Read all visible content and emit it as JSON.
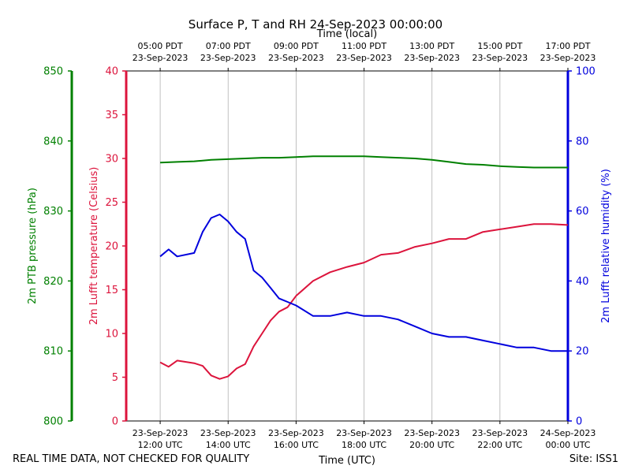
{
  "title": "Surface P, T and RH 24-Sep-2023 00:00:00",
  "footer": {
    "left": "REAL TIME DATA, NOT CHECKED FOR QUALITY",
    "right": "Site: ISS1"
  },
  "colors": {
    "pressure": "#008000",
    "temperature": "#dc143c",
    "humidity": "#0000dd",
    "grid": "#b0b0b0"
  },
  "chart_data": {
    "type": "line",
    "title": "Surface P, T and RH 24-Sep-2023 00:00:00",
    "xlabel": "Time (UTC)",
    "xlabel_top": "Time (local)",
    "xlim": [
      "2023-09-23 11:00",
      "2023-09-24 00:00"
    ],
    "x_ticks_bottom": [
      {
        "value": "2023-09-23 12:00",
        "line1": "23-Sep-2023",
        "line2": "12:00 UTC"
      },
      {
        "value": "2023-09-23 14:00",
        "line1": "23-Sep-2023",
        "line2": "14:00 UTC"
      },
      {
        "value": "2023-09-23 16:00",
        "line1": "23-Sep-2023",
        "line2": "16:00 UTC"
      },
      {
        "value": "2023-09-23 18:00",
        "line1": "23-Sep-2023",
        "line2": "18:00 UTC"
      },
      {
        "value": "2023-09-23 20:00",
        "line1": "23-Sep-2023",
        "line2": "20:00 UTC"
      },
      {
        "value": "2023-09-23 22:00",
        "line1": "23-Sep-2023",
        "line2": "22:00 UTC"
      },
      {
        "value": "2023-09-24 00:00",
        "line1": "24-Sep-2023",
        "line2": "00:00 UTC"
      }
    ],
    "x_ticks_top": [
      {
        "value": "2023-09-23 12:00",
        "line1": "05:00 PDT",
        "line2": "23-Sep-2023"
      },
      {
        "value": "2023-09-23 14:00",
        "line1": "07:00 PDT",
        "line2": "23-Sep-2023"
      },
      {
        "value": "2023-09-23 16:00",
        "line1": "09:00 PDT",
        "line2": "23-Sep-2023"
      },
      {
        "value": "2023-09-23 18:00",
        "line1": "11:00 PDT",
        "line2": "23-Sep-2023"
      },
      {
        "value": "2023-09-23 20:00",
        "line1": "13:00 PDT",
        "line2": "23-Sep-2023"
      },
      {
        "value": "2023-09-23 22:00",
        "line1": "15:00 PDT",
        "line2": "23-Sep-2023"
      },
      {
        "value": "2023-09-24 00:00",
        "line1": "17:00 PDT",
        "line2": "23-Sep-2023"
      }
    ],
    "axes": {
      "pressure": {
        "label": "2m PTB pressure (hPa)",
        "ylim": [
          800,
          850
        ],
        "ticks": [
          "800",
          "810",
          "820",
          "830",
          "840",
          "850"
        ]
      },
      "temperature": {
        "label": "2m Lufft temperature (Celsius)",
        "ylim": [
          0,
          40
        ],
        "ticks": [
          "0",
          "5",
          "10",
          "15",
          "20",
          "25",
          "30",
          "35",
          "40"
        ]
      },
      "humidity": {
        "label": "2m Lufft relative humidity (%)",
        "ylim": [
          0,
          100
        ],
        "ticks": [
          "0",
          "20",
          "40",
          "60",
          "80",
          "100"
        ]
      }
    },
    "grid": "vertical",
    "series": [
      {
        "axis": "pressure",
        "x": [
          "2023-09-23 12:00",
          "2023-09-23 12:30",
          "2023-09-23 13:00",
          "2023-09-23 13:30",
          "2023-09-23 14:00",
          "2023-09-23 14:30",
          "2023-09-23 15:00",
          "2023-09-23 15:30",
          "2023-09-23 16:00",
          "2023-09-23 16:30",
          "2023-09-23 17:00",
          "2023-09-23 17:30",
          "2023-09-23 18:00",
          "2023-09-23 18:30",
          "2023-09-23 19:00",
          "2023-09-23 19:30",
          "2023-09-23 20:00",
          "2023-09-23 20:30",
          "2023-09-23 21:00",
          "2023-09-23 21:30",
          "2023-09-23 22:00",
          "2023-09-23 22:30",
          "2023-09-23 23:00",
          "2023-09-23 23:30",
          "2023-09-24 00:00"
        ],
        "values": [
          836.9,
          837.0,
          837.1,
          837.3,
          837.4,
          837.5,
          837.6,
          837.6,
          837.7,
          837.8,
          837.8,
          837.8,
          837.8,
          837.7,
          837.6,
          837.5,
          837.3,
          837.0,
          836.7,
          836.6,
          836.4,
          836.3,
          836.2,
          836.2,
          836.2
        ]
      },
      {
        "axis": "temperature",
        "x": [
          "2023-09-23 12:00",
          "2023-09-23 12:15",
          "2023-09-23 12:30",
          "2023-09-23 13:00",
          "2023-09-23 13:15",
          "2023-09-23 13:30",
          "2023-09-23 13:45",
          "2023-09-23 14:00",
          "2023-09-23 14:15",
          "2023-09-23 14:30",
          "2023-09-23 14:45",
          "2023-09-23 15:00",
          "2023-09-23 15:15",
          "2023-09-23 15:30",
          "2023-09-23 15:45",
          "2023-09-23 16:00",
          "2023-09-23 16:30",
          "2023-09-23 17:00",
          "2023-09-23 17:30",
          "2023-09-23 18:00",
          "2023-09-23 18:30",
          "2023-09-23 19:00",
          "2023-09-23 19:30",
          "2023-09-23 20:00",
          "2023-09-23 20:30",
          "2023-09-23 21:00",
          "2023-09-23 21:30",
          "2023-09-23 22:00",
          "2023-09-23 22:30",
          "2023-09-23 23:00",
          "2023-09-23 23:30",
          "2023-09-24 00:00"
        ],
        "values": [
          6.7,
          6.2,
          6.9,
          6.6,
          6.3,
          5.2,
          4.8,
          5.1,
          6.0,
          6.5,
          8.5,
          10.0,
          11.5,
          12.5,
          13.0,
          14.3,
          16.0,
          17.0,
          17.6,
          18.1,
          19.0,
          19.2,
          19.9,
          20.3,
          20.8,
          20.8,
          21.6,
          21.9,
          22.2,
          22.5,
          22.5,
          22.4
        ]
      },
      {
        "axis": "humidity",
        "x": [
          "2023-09-23 12:00",
          "2023-09-23 12:15",
          "2023-09-23 12:30",
          "2023-09-23 13:00",
          "2023-09-23 13:15",
          "2023-09-23 13:30",
          "2023-09-23 13:45",
          "2023-09-23 14:00",
          "2023-09-23 14:15",
          "2023-09-23 14:30",
          "2023-09-23 14:45",
          "2023-09-23 15:00",
          "2023-09-23 15:15",
          "2023-09-23 15:30",
          "2023-09-23 15:45",
          "2023-09-23 16:00",
          "2023-09-23 16:30",
          "2023-09-23 17:00",
          "2023-09-23 17:30",
          "2023-09-23 18:00",
          "2023-09-23 18:30",
          "2023-09-23 19:00",
          "2023-09-23 19:30",
          "2023-09-23 20:00",
          "2023-09-23 20:30",
          "2023-09-23 21:00",
          "2023-09-23 21:30",
          "2023-09-23 22:00",
          "2023-09-23 22:30",
          "2023-09-23 23:00",
          "2023-09-23 23:30",
          "2023-09-24 00:00"
        ],
        "values": [
          47,
          49,
          47,
          48,
          54,
          58,
          59,
          57,
          54,
          52,
          43,
          41,
          38,
          35,
          34,
          33,
          30,
          30,
          31,
          30,
          30,
          29,
          27,
          25,
          24,
          24,
          23,
          22,
          21,
          21,
          20,
          20
        ]
      }
    ]
  }
}
